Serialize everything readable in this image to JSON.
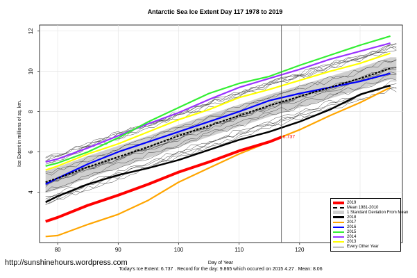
{
  "chart_data": {
    "type": "line",
    "title": "Antarctic Sea Ice Extent Day 117 1978 to 2019",
    "xlabel": "Day of Year",
    "ylabel": "Ice Extent in millions of sq. km.",
    "xlim": [
      77,
      137
    ],
    "ylim": [
      1.5,
      12.3
    ],
    "x_ticks": [
      80,
      90,
      100,
      110,
      120,
      130
    ],
    "y_ticks": [
      4,
      6,
      8,
      10,
      12
    ],
    "grid": true,
    "marker_day": 117,
    "annotation": "6.737",
    "legend_position": "bottom-right",
    "legend": [
      "2019",
      "Mean 1981-2010",
      "1 Standard Deviation From Mean",
      "2018",
      "2017",
      "2016",
      "2015",
      "2014",
      "2013",
      "Every Other Year"
    ],
    "footer": "Today's Ice Extent: 6.737  . Record for the day: 9.865 which occured on 2015 4.27  . Mean: 8.06",
    "series": [
      {
        "name": "2019",
        "color": "#ff0000",
        "x": [
          78,
          80,
          85,
          90,
          95,
          100,
          105,
          110,
          115,
          117
        ],
        "values": [
          2.55,
          2.75,
          3.35,
          3.85,
          4.4,
          5.0,
          5.5,
          6.05,
          6.5,
          6.737
        ]
      },
      {
        "name": "Mean 1981-2010",
        "color": "#000000",
        "dashed": true,
        "x": [
          78,
          80,
          85,
          90,
          95,
          100,
          105,
          110,
          115,
          120,
          125,
          130,
          135
        ],
        "values": [
          4.5,
          4.7,
          5.25,
          5.75,
          6.25,
          6.8,
          7.3,
          7.8,
          8.3,
          8.75,
          9.2,
          9.65,
          10.15
        ]
      },
      {
        "name": "2018",
        "color": "#000000",
        "x": [
          78,
          80,
          85,
          90,
          95,
          100,
          105,
          110,
          115,
          120,
          125,
          130,
          135
        ],
        "values": [
          3.5,
          3.8,
          4.4,
          4.85,
          5.2,
          5.6,
          6.1,
          6.6,
          7.0,
          7.5,
          8.1,
          8.85,
          9.3
        ]
      },
      {
        "name": "2017",
        "color": "#ffa500",
        "x": [
          78,
          80,
          85,
          90,
          95,
          100,
          105,
          110,
          115,
          120,
          125,
          130,
          135
        ],
        "values": [
          1.8,
          1.85,
          2.4,
          2.9,
          3.6,
          4.5,
          5.2,
          5.9,
          6.5,
          7.1,
          7.8,
          8.45,
          9.2
        ]
      },
      {
        "name": "2016",
        "color": "#0000ff",
        "x": [
          78,
          80,
          85,
          90,
          95,
          100,
          105,
          110,
          115,
          120,
          125,
          130,
          135
        ],
        "values": [
          4.4,
          4.7,
          5.4,
          6.0,
          6.5,
          7.0,
          7.5,
          8.0,
          8.55,
          8.9,
          9.2,
          9.5,
          9.9
        ]
      },
      {
        "name": "2015",
        "color": "#33ee33",
        "x": [
          78,
          80,
          85,
          90,
          95,
          100,
          105,
          110,
          115,
          120,
          125,
          130,
          135
        ],
        "values": [
          5.3,
          5.45,
          6.0,
          6.7,
          7.5,
          8.2,
          8.9,
          9.4,
          9.75,
          10.3,
          10.8,
          11.3,
          11.75
        ]
      },
      {
        "name": "2014",
        "color": "#9933ff",
        "x": [
          78,
          80,
          85,
          90,
          95,
          100,
          105,
          110,
          115,
          120,
          125,
          130,
          135
        ],
        "values": [
          5.5,
          5.65,
          6.2,
          6.8,
          7.4,
          7.95,
          8.6,
          9.2,
          9.65,
          10.1,
          10.6,
          11.0,
          11.4
        ]
      },
      {
        "name": "2013",
        "color": "#ffff00",
        "x": [
          78,
          80,
          85,
          90,
          95,
          100,
          105,
          110,
          115,
          120,
          125,
          130,
          135
        ],
        "values": [
          5.1,
          5.3,
          5.9,
          6.4,
          7.0,
          7.6,
          8.1,
          8.7,
          9.1,
          9.55,
          10.0,
          10.4,
          10.9
        ]
      },
      {
        "name": "Every Other Year",
        "color": "#555555",
        "x": [
          78,
          136
        ],
        "values": [
          4.0,
          10.5
        ]
      }
    ]
  },
  "watermark": "http://sunshinehours.wordpress.com"
}
